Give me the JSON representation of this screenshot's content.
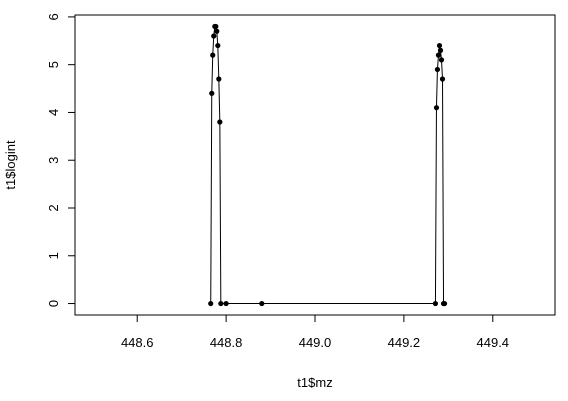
{
  "chart_data": {
    "type": "line",
    "title": "",
    "xlabel": "t1$mz",
    "ylabel": "t1$logint",
    "xlim": [
      448.46,
      449.54
    ],
    "ylim": [
      -0.24,
      6.04
    ],
    "xticks": [
      "448.6",
      "448.8",
      "449.0",
      "449.2",
      "449.4"
    ],
    "yticks": [
      "0",
      "1",
      "2",
      "3",
      "4",
      "5",
      "6"
    ],
    "grid": false,
    "legend": "none",
    "marker": "filled-circle",
    "colors": {
      "line": "#000000",
      "points": "#000000",
      "frame": "#000000",
      "background": "#ffffff"
    },
    "series": [
      {
        "x": [
          448.7654,
          448.7677,
          448.7699,
          448.7722,
          448.7745,
          448.7768,
          448.779,
          448.7813,
          448.7836,
          448.7859,
          448.7881,
          448.8,
          448.8803,
          449.271,
          449.2733,
          449.2755,
          449.2778,
          449.2801,
          449.2824,
          449.2846,
          449.2869,
          449.2892,
          449.2915
        ],
        "y": [
          0,
          4.4,
          5.2,
          5.6,
          5.8,
          5.8,
          5.7,
          5.4,
          4.7,
          3.8,
          0,
          0,
          0,
          0,
          4.1,
          4.9,
          5.2,
          5.4,
          5.3,
          5.1,
          4.7,
          0,
          0
        ]
      }
    ]
  }
}
